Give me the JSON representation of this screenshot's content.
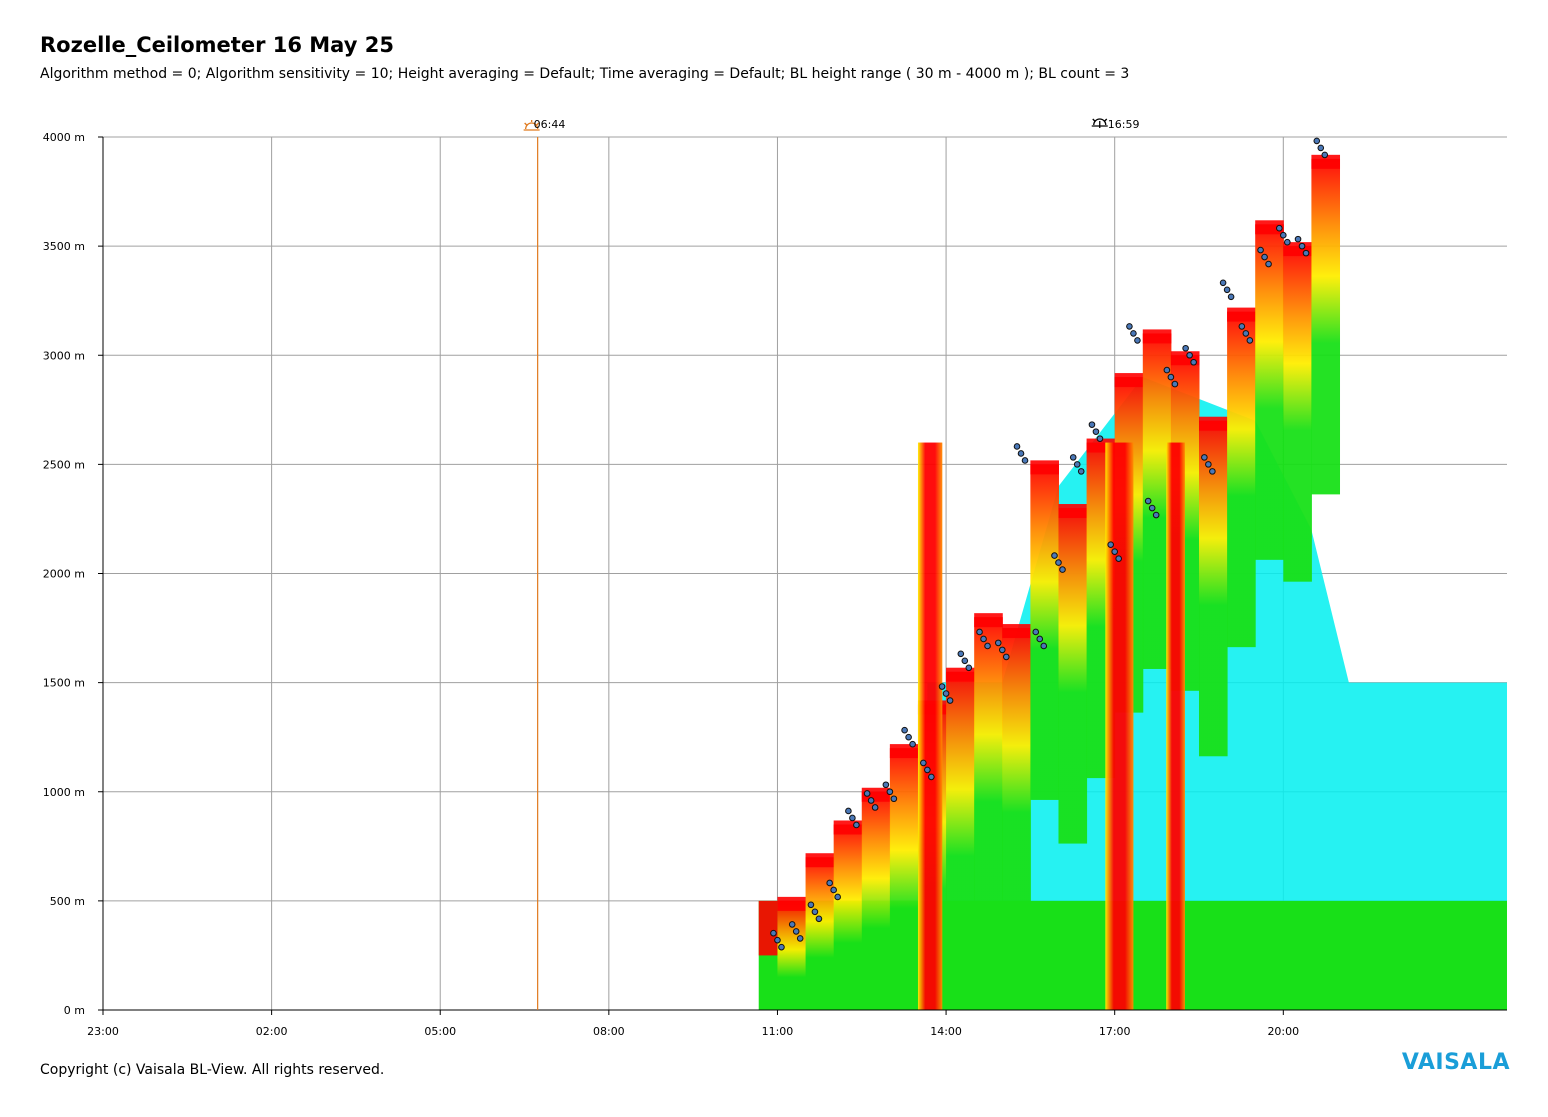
{
  "title": "Rozelle_Ceilometer 16 May 25",
  "subtitle": "Algorithm method = 0; Algorithm sensitivity = 10; Height averaging = Default; Time averaging = Default; BL height range ( 30 m - 4000 m ); BL count = 3",
  "footer": "Copyright (c) Vaisala BL-View. All rights reserved.",
  "brand": "VAISALA",
  "colors": {
    "grid": "#a0a0a0",
    "sunrise": "#e07a1f",
    "sunset": "#000000",
    "red": "#ff0000",
    "orange": "#ff8c00",
    "yellow": "#ffee00",
    "green": "#18e018",
    "cyan": "#00f0f0",
    "bl_marker_fill": "#4a78b8",
    "brand": "#1a9ed8"
  },
  "chart_data": {
    "type": "heatmap",
    "title": "Rozelle_Ceilometer 16 May 25",
    "xlabel": "",
    "ylabel": "",
    "x_unit": "hours since 23:00 (15 May)",
    "x_range": [
      "23:00",
      "23:59"
    ],
    "x_ticks": [
      "23:00",
      "02:00",
      "05:00",
      "08:00",
      "11:00",
      "14:00",
      "17:00",
      "20:00"
    ],
    "y_range": [
      0,
      4000
    ],
    "y_ticks": [
      "0 m",
      "500 m",
      "1000 m",
      "1500 m",
      "2000 m",
      "2500 m",
      "3000 m",
      "3500 m",
      "4000 m"
    ],
    "grid": true,
    "sunrise": {
      "label": "06:44",
      "icon": "sunrise-icon"
    },
    "sunset": {
      "label": "16:59",
      "icon": "sunset-icon"
    },
    "data_start": "10:40",
    "backscatter_top_profile": [
      [
        "11:00",
        500
      ],
      [
        "11:30",
        700
      ],
      [
        "12:00",
        850
      ],
      [
        "12:30",
        1000
      ],
      [
        "13:00",
        1200
      ],
      [
        "13:30",
        1400
      ],
      [
        "14:00",
        1550
      ],
      [
        "14:30",
        1800
      ],
      [
        "15:00",
        1750
      ],
      [
        "15:30",
        2500
      ],
      [
        "16:00",
        2300
      ],
      [
        "16:30",
        2600
      ],
      [
        "17:00",
        2900
      ],
      [
        "17:30",
        3100
      ],
      [
        "18:00",
        3000
      ],
      [
        "18:30",
        2700
      ],
      [
        "19:00",
        3200
      ],
      [
        "19:30",
        3600
      ],
      [
        "20:00",
        3500
      ],
      [
        "20:30",
        3900
      ],
      [
        "21:00",
        3700
      ]
    ],
    "bl_height_series": [
      {
        "time": "11:00",
        "height": 320
      },
      {
        "time": "11:20",
        "height": 360
      },
      {
        "time": "11:40",
        "height": 450
      },
      {
        "time": "12:00",
        "height": 550
      },
      {
        "time": "12:20",
        "height": 880
      },
      {
        "time": "12:40",
        "height": 960
      },
      {
        "time": "13:00",
        "height": 1000
      },
      {
        "time": "13:20",
        "height": 1250
      },
      {
        "time": "13:40",
        "height": 1100
      },
      {
        "time": "14:00",
        "height": 1450
      },
      {
        "time": "14:20",
        "height": 1600
      },
      {
        "time": "14:40",
        "height": 1700
      },
      {
        "time": "15:00",
        "height": 1650
      },
      {
        "time": "15:20",
        "height": 2550
      },
      {
        "time": "15:40",
        "height": 1700
      },
      {
        "time": "16:00",
        "height": 2050
      },
      {
        "time": "16:20",
        "height": 2500
      },
      {
        "time": "16:40",
        "height": 2650
      },
      {
        "time": "17:00",
        "height": 2100
      },
      {
        "time": "17:20",
        "height": 3100
      },
      {
        "time": "17:40",
        "height": 2300
      },
      {
        "time": "18:00",
        "height": 2900
      },
      {
        "time": "18:20",
        "height": 3000
      },
      {
        "time": "18:40",
        "height": 2500
      },
      {
        "time": "19:00",
        "height": 3300
      },
      {
        "time": "19:20",
        "height": 3100
      },
      {
        "time": "19:40",
        "height": 3450
      },
      {
        "time": "20:00",
        "height": 3550
      },
      {
        "time": "20:20",
        "height": 3500
      },
      {
        "time": "20:40",
        "height": 3950
      }
    ]
  }
}
